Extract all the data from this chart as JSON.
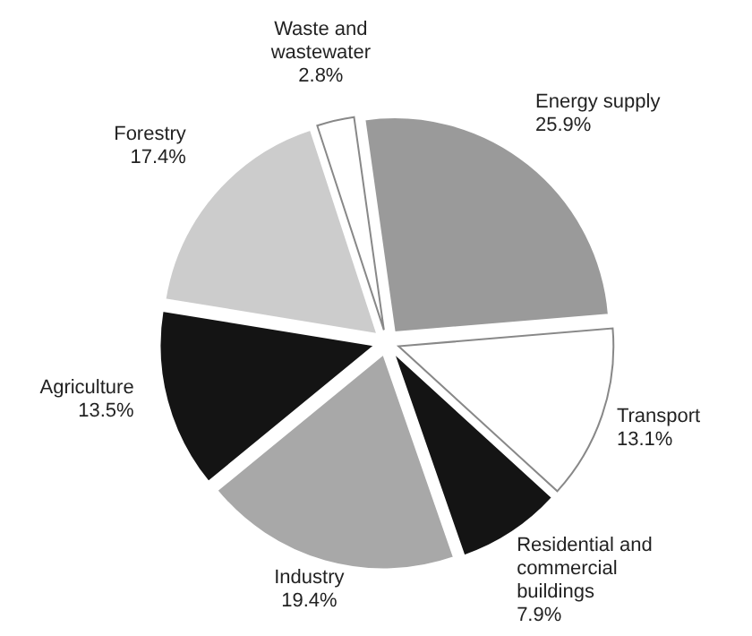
{
  "chart_data": {
    "type": "pie",
    "categories": [
      "Energy supply",
      "Transport",
      "Residential and commercial buildings",
      "Industry",
      "Agriculture",
      "Forestry",
      "Waste and wastewater"
    ],
    "values": [
      25.9,
      13.1,
      7.9,
      19.4,
      13.5,
      17.4,
      2.8
    ],
    "value_labels": [
      "25.9%",
      "13.1%",
      "7.9%",
      "19.4%",
      "13.5%",
      "17.4%",
      "2.8%"
    ],
    "colors": [
      "#9a9a9a",
      "#ffffff",
      "#141414",
      "#a8a8a8",
      "#141414",
      "#cccccc",
      "#ffffff"
    ]
  }
}
